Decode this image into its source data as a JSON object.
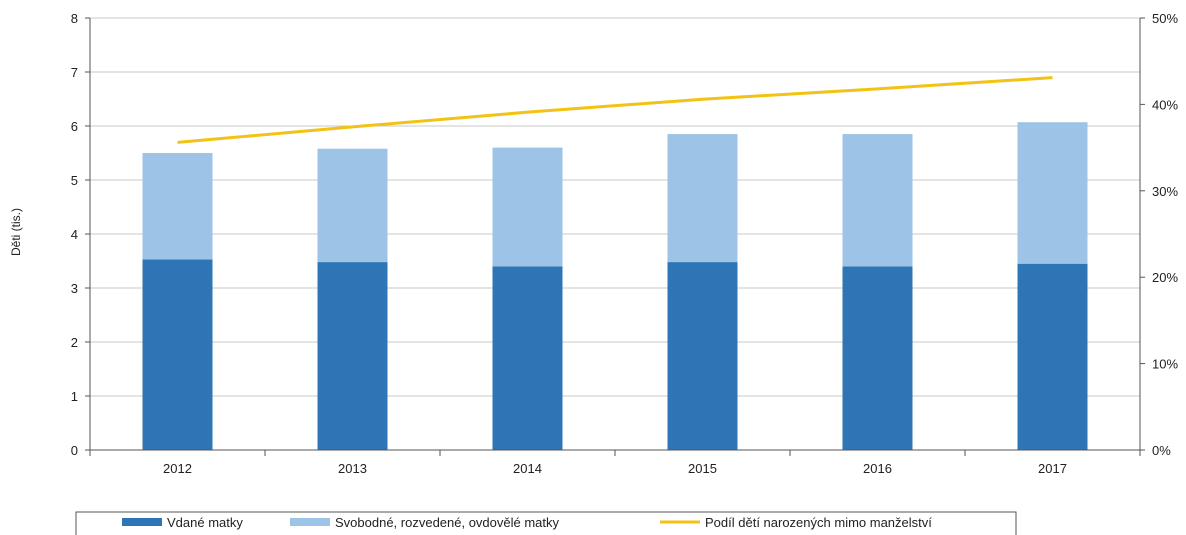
{
  "chart_data": {
    "type": "bar",
    "stacked": true,
    "categories": [
      "2012",
      "2013",
      "2014",
      "2015",
      "2016",
      "2017"
    ],
    "series": [
      {
        "name": "Vdané matky",
        "kind": "bar",
        "axis": "left",
        "color": "#2e75b6",
        "values": [
          3.53,
          3.48,
          3.4,
          3.48,
          3.4,
          3.45
        ]
      },
      {
        "name": "Svobodné, rozvedené, ovdovělé matky",
        "kind": "bar",
        "axis": "left",
        "color": "#9dc3e6",
        "values": [
          1.97,
          2.1,
          2.2,
          2.37,
          2.45,
          2.62
        ]
      },
      {
        "name": "Podíl dětí narozených mimo manželství",
        "kind": "line",
        "axis": "right",
        "color": "#f2c314",
        "values": [
          35.6,
          37.4,
          39.1,
          40.6,
          41.8,
          43.1
        ]
      }
    ],
    "ylabel": "Děti (tis.)",
    "ylim": [
      0,
      8
    ],
    "yticks": [
      "0",
      "1",
      "2",
      "3",
      "4",
      "5",
      "6",
      "7",
      "8"
    ],
    "y2lim": [
      0,
      50
    ],
    "y2ticks": [
      "0%",
      "10%",
      "20%",
      "30%",
      "40%",
      "50%"
    ],
    "grid": true,
    "legend_position": "bottom"
  }
}
